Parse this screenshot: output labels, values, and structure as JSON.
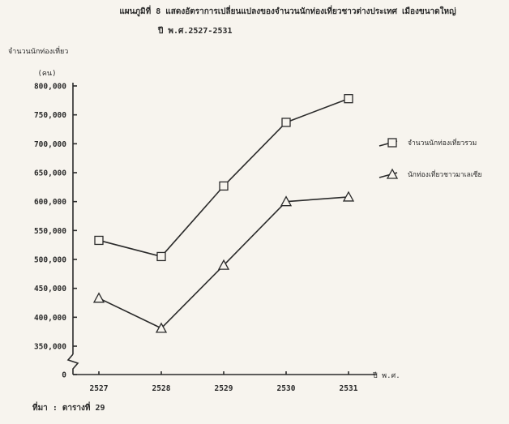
{
  "chart_data": {
    "type": "line",
    "title_line1": "แผนภูมิที่ 8 แสดงอัตราการเปลี่ยนแปลงของจำนวนนักท่องเที่ยวชาวต่างประเทศ เมืองขนาดใหญ่",
    "title_line2": "ปี พ.ศ.2527-2531",
    "ylabel": "จำนวนนักท่องเที่ยว",
    "yunit": "(คน)",
    "xlabel": "ปี พ.ศ.",
    "categories": [
      "2527",
      "2528",
      "2529",
      "2530",
      "2531"
    ],
    "y_ticks": [
      {
        "value": 0,
        "label": "0"
      },
      {
        "value": 350000,
        "label": "350,000"
      },
      {
        "value": 400000,
        "label": "400,000"
      },
      {
        "value": 450000,
        "label": "450,000"
      },
      {
        "value": 500000,
        "label": "500,000"
      },
      {
        "value": 550000,
        "label": "550,000"
      },
      {
        "value": 600000,
        "label": "600,000"
      },
      {
        "value": 650000,
        "label": "650,000"
      },
      {
        "value": 700000,
        "label": "700,000"
      },
      {
        "value": 750000,
        "label": "750,000"
      },
      {
        "value": 800000,
        "label": "800,000"
      }
    ],
    "ylim": [
      325000,
      800000
    ],
    "axis_break": true,
    "series": [
      {
        "name": "จำนวนนักท่องเที่ยวรวม",
        "marker": "square",
        "values": [
          533000,
          505000,
          627000,
          737000,
          778000
        ]
      },
      {
        "name": "นักท่องเที่ยวชาวมาเลเซีย",
        "marker": "triangle",
        "values": [
          433000,
          381000,
          490000,
          600000,
          608000
        ]
      }
    ],
    "legend_position": "right",
    "grid": false
  },
  "source": "ที่มา : ตารางที่ 29"
}
